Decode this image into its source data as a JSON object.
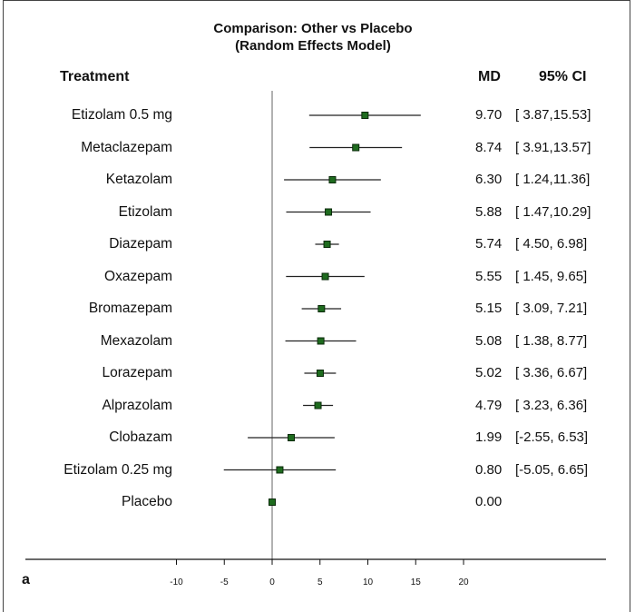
{
  "chart_data": {
    "type": "forest",
    "title": "Comparison: Other vs Placebo",
    "subtitle": "(Random Effects Model)",
    "column_headers": {
      "treatment": "Treatment",
      "md": "MD",
      "ci": "95% CI"
    },
    "panel_label": "a",
    "xlim": [
      -10,
      20
    ],
    "xticks": [
      -10,
      -5,
      0,
      5,
      10,
      15,
      20
    ],
    "marker_color": "#1e6b1e",
    "rows": [
      {
        "treatment": "Etizolam 0.5 mg",
        "md": 9.7,
        "lo": 3.87,
        "hi": 15.53,
        "md_text": "9.70",
        "ci_text": "[ 3.87,15.53]"
      },
      {
        "treatment": "Metaclazepam",
        "md": 8.74,
        "lo": 3.91,
        "hi": 13.57,
        "md_text": "8.74",
        "ci_text": "[ 3.91,13.57]"
      },
      {
        "treatment": "Ketazolam",
        "md": 6.3,
        "lo": 1.24,
        "hi": 11.36,
        "md_text": "6.30",
        "ci_text": "[ 1.24,11.36]"
      },
      {
        "treatment": "Etizolam",
        "md": 5.88,
        "lo": 1.47,
        "hi": 10.29,
        "md_text": "5.88",
        "ci_text": "[ 1.47,10.29]"
      },
      {
        "treatment": "Diazepam",
        "md": 5.74,
        "lo": 4.5,
        "hi": 6.98,
        "md_text": "5.74",
        "ci_text": "[ 4.50, 6.98]"
      },
      {
        "treatment": "Oxazepam",
        "md": 5.55,
        "lo": 1.45,
        "hi": 9.65,
        "md_text": "5.55",
        "ci_text": "[ 1.45, 9.65]"
      },
      {
        "treatment": "Bromazepam",
        "md": 5.15,
        "lo": 3.09,
        "hi": 7.21,
        "md_text": "5.15",
        "ci_text": "[ 3.09, 7.21]"
      },
      {
        "treatment": "Mexazolam",
        "md": 5.08,
        "lo": 1.38,
        "hi": 8.77,
        "md_text": "5.08",
        "ci_text": "[ 1.38, 8.77]"
      },
      {
        "treatment": "Lorazepam",
        "md": 5.02,
        "lo": 3.36,
        "hi": 6.67,
        "md_text": "5.02",
        "ci_text": "[ 3.36, 6.67]"
      },
      {
        "treatment": "Alprazolam",
        "md": 4.79,
        "lo": 3.23,
        "hi": 6.36,
        "md_text": "4.79",
        "ci_text": "[ 3.23, 6.36]"
      },
      {
        "treatment": "Clobazam",
        "md": 1.99,
        "lo": -2.55,
        "hi": 6.53,
        "md_text": "1.99",
        "ci_text": "[-2.55, 6.53]"
      },
      {
        "treatment": "Etizolam 0.25 mg",
        "md": 0.8,
        "lo": -5.05,
        "hi": 6.65,
        "md_text": "0.80",
        "ci_text": "[-5.05, 6.65]"
      },
      {
        "treatment": "Placebo",
        "md": 0.0,
        "lo": 0.0,
        "hi": 0.0,
        "md_text": "0.00",
        "ci_text": ""
      }
    ]
  }
}
